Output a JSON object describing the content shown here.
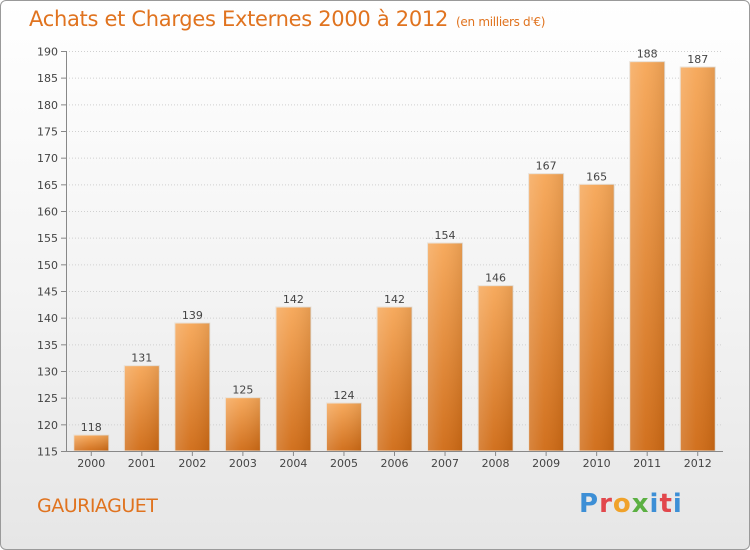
{
  "title": "Achats et Charges Externes 2000 à 2012",
  "subtitle": "(en milliers d'€)",
  "commune": "GAURIAGUET",
  "logo_text": "Proxiti",
  "colors": {
    "accent": "#e0731f",
    "bar_top": "#f6a656",
    "bar_bottom": "#cf6a14",
    "grid": "#d0d0d0"
  },
  "chart_data": {
    "type": "bar",
    "title": "Achats et Charges Externes 2000 à 2012",
    "subtitle": "(en milliers d'€)",
    "xlabel": "",
    "ylabel": "",
    "categories": [
      "2000",
      "2001",
      "2002",
      "2003",
      "2004",
      "2005",
      "2006",
      "2007",
      "2008",
      "2009",
      "2010",
      "2011",
      "2012"
    ],
    "values": [
      118,
      131,
      139,
      125,
      142,
      124,
      142,
      154,
      146,
      167,
      165,
      188,
      187
    ],
    "ylim": [
      115,
      190
    ],
    "yticks": [
      115,
      120,
      125,
      130,
      135,
      140,
      145,
      150,
      155,
      160,
      165,
      170,
      175,
      180,
      185,
      190
    ],
    "grid": true,
    "data_labels": true
  }
}
